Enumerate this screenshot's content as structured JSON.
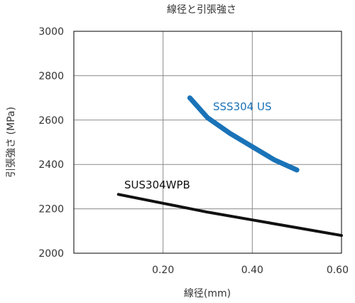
{
  "chart_data": {
    "type": "line",
    "title": "線径と引張強さ",
    "xlabel": "線径(mm)",
    "ylabel": "引張強さ (MPa)",
    "xlim": [
      0,
      0.6
    ],
    "ylim": [
      2000,
      3000
    ],
    "x_ticks": [
      "0.20",
      "0.40",
      "0.60"
    ],
    "y_ticks": [
      "2000",
      "2200",
      "2400",
      "2600",
      "2800",
      "3000"
    ],
    "grid": true,
    "legend": "inline labels",
    "series": [
      {
        "name": "SSS304 US",
        "color": "#1a73b8",
        "x": [
          0.26,
          0.3,
          0.35,
          0.4,
          0.45,
          0.5
        ],
        "y": [
          2700,
          2610,
          2540,
          2480,
          2420,
          2375
        ]
      },
      {
        "name": "SUS304WPB",
        "color": "#111111",
        "x": [
          0.1,
          0.2,
          0.3,
          0.4,
          0.5,
          0.6
        ],
        "y": [
          2265,
          2225,
          2185,
          2150,
          2115,
          2080
        ]
      }
    ]
  }
}
